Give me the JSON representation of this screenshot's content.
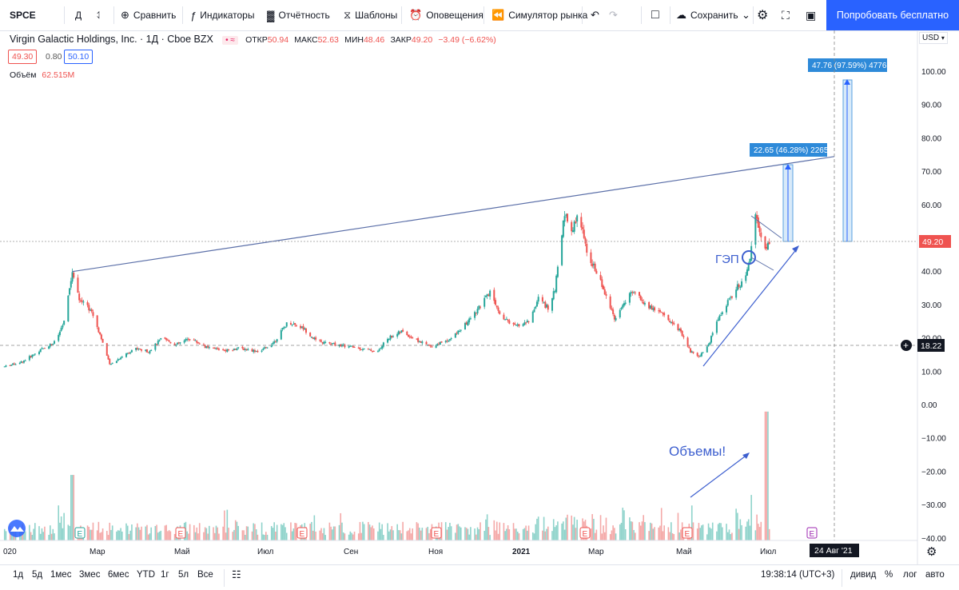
{
  "toolbar": {
    "symbol": "SPCE",
    "interval": "Д",
    "compare": "Сравнить",
    "indicators": "Индикаторы",
    "financials": "Отчётность",
    "templates": "Шаблоны",
    "alerts": "Оповещения",
    "replay": "Симулятор рынка",
    "save": "Сохранить",
    "try_free": "Попробовать бесплатно"
  },
  "legend": {
    "name": "Virgin Galactic Holdings, Inc. · 1Д · Cboe BZX",
    "open_label": "ОТКР",
    "open": "50.94",
    "high_label": "МАКС",
    "high": "52.63",
    "low_label": "МИН",
    "low": "48.46",
    "close_label": "ЗАКР",
    "close": "49.20",
    "change": "−3.49 (−6.62%)",
    "bid": "49.30",
    "spread": "0.80",
    "ask": "50.10",
    "volume_label": "Объём",
    "volume": "62.515M",
    "currency": "USD"
  },
  "bottombar": {
    "ranges": [
      "1д",
      "5д",
      "1мес",
      "3мес",
      "6мес",
      "YTD",
      "1г",
      "5л",
      "Все"
    ],
    "time": "19:38:14 (UTC+3)",
    "adj": "дивид",
    "pct": "%",
    "log": "лог",
    "auto": "авто"
  },
  "chart_data": {
    "type": "candlestick",
    "y_ticks": [
      "100.00",
      "90.00",
      "80.00",
      "70.00",
      "60.00",
      "50.00",
      "40.00",
      "30.00",
      "20.00",
      "10.00",
      "0.00",
      "−10.00",
      "−20.00",
      "−30.00",
      "−40.00"
    ],
    "x_labels": [
      "020",
      "Мар",
      "Май",
      "Июл",
      "Сен",
      "Ноя",
      "2021",
      "Мар",
      "Май",
      "Июл"
    ],
    "crosshair_date": "24 Авг '21",
    "last_price": "49.20",
    "crosshair_price": "18.22",
    "price_path": [
      [
        "2020-01-02",
        11.5
      ],
      [
        "2020-01-15",
        13
      ],
      [
        "2020-01-30",
        17
      ],
      [
        "2020-02-08",
        19
      ],
      [
        "2020-02-14",
        25
      ],
      [
        "2020-02-20",
        40
      ],
      [
        "2020-02-25",
        32
      ],
      [
        "2020-03-05",
        28
      ],
      [
        "2020-03-12",
        20
      ],
      [
        "2020-03-18",
        12
      ],
      [
        "2020-03-25",
        14
      ],
      [
        "2020-04-05",
        17
      ],
      [
        "2020-04-15",
        16
      ],
      [
        "2020-04-25",
        20
      ],
      [
        "2020-05-05",
        18
      ],
      [
        "2020-05-15",
        20
      ],
      [
        "2020-05-28",
        17
      ],
      [
        "2020-06-10",
        16.5
      ],
      [
        "2020-06-20",
        17
      ],
      [
        "2020-07-05",
        16
      ],
      [
        "2020-07-15",
        19
      ],
      [
        "2020-07-25",
        25
      ],
      [
        "2020-08-05",
        23
      ],
      [
        "2020-08-15",
        19
      ],
      [
        "2020-08-30",
        18
      ],
      [
        "2020-09-15",
        17
      ],
      [
        "2020-09-28",
        16
      ],
      [
        "2020-10-05",
        20
      ],
      [
        "2020-10-15",
        22
      ],
      [
        "2020-10-28",
        19
      ],
      [
        "2020-11-05",
        17.5
      ],
      [
        "2020-11-20",
        20
      ],
      [
        "2020-11-30",
        24
      ],
      [
        "2020-12-10",
        29
      ],
      [
        "2020-12-18",
        34
      ],
      [
        "2020-12-25",
        27
      ],
      [
        "2021-01-05",
        23.5
      ],
      [
        "2021-01-15",
        25
      ],
      [
        "2021-01-22",
        32
      ],
      [
        "2021-01-29",
        29
      ],
      [
        "2021-02-03",
        35
      ],
      [
        "2021-02-08",
        50
      ],
      [
        "2021-02-10",
        58
      ],
      [
        "2021-02-15",
        52
      ],
      [
        "2021-02-20",
        58
      ],
      [
        "2021-02-26",
        46
      ],
      [
        "2021-03-05",
        40
      ],
      [
        "2021-03-12",
        33
      ],
      [
        "2021-03-18",
        26
      ],
      [
        "2021-03-25",
        31
      ],
      [
        "2021-04-01",
        34
      ],
      [
        "2021-04-10",
        30
      ],
      [
        "2021-04-20",
        28
      ],
      [
        "2021-04-28",
        25
      ],
      [
        "2021-05-05",
        22
      ],
      [
        "2021-05-12",
        16
      ],
      [
        "2021-05-18",
        14.5
      ],
      [
        "2021-05-25",
        18
      ],
      [
        "2021-06-01",
        26
      ],
      [
        "2021-06-07",
        30
      ],
      [
        "2021-06-14",
        35
      ],
      [
        "2021-06-21",
        38
      ],
      [
        "2021-06-26",
        49
      ],
      [
        "2021-06-28",
        57
      ],
      [
        "2021-07-02",
        50
      ],
      [
        "2021-07-06",
        47
      ],
      [
        "2021-07-08",
        49.2
      ]
    ],
    "volume_spikes": [
      [
        "2020-02-20",
        -21
      ],
      [
        "2021-06-26",
        -27
      ],
      [
        "2021-07-06",
        -2
      ],
      [
        "2021-07-12",
        -21
      ]
    ],
    "annotations": {
      "gap": "ГЭП",
      "volumes": "Объемы!",
      "measure_1": "22.65 (46.28%) 2265",
      "measure_2": "47.76 (97.59%) 4776"
    },
    "trendline": [
      [
        "2020-02-20",
        40
      ],
      [
        "2021-08-24",
        74.5
      ]
    ],
    "earnings_marker": "E"
  }
}
